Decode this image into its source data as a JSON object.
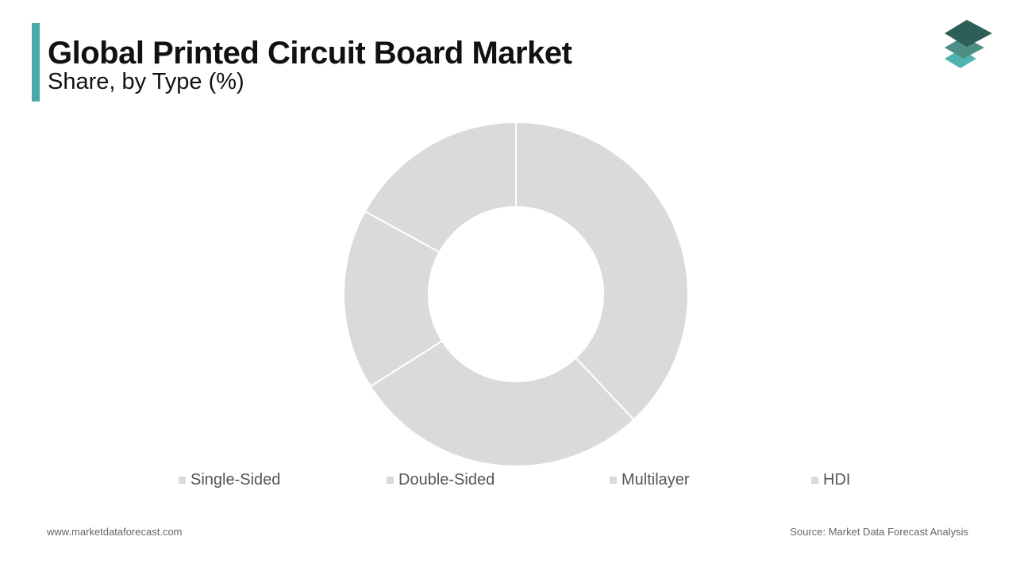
{
  "header": {
    "title": "Global Printed Circuit Board Market",
    "subtitle": "Share, by Type (%)"
  },
  "colors": {
    "accent": "#4aa8a8",
    "slice_fill": "#dadada",
    "slice_stroke": "#ffffff",
    "logo_dark": "#2e5e58",
    "logo_mid": "#4d8f86",
    "logo_light": "#4fb3b0"
  },
  "chart_data": {
    "type": "pie",
    "donut": true,
    "categories": [
      "Single-Sided",
      "Double-Sided",
      "Multilayer",
      "HDI"
    ],
    "values": [
      38,
      28,
      17,
      17
    ],
    "legend_position": "bottom"
  },
  "footer": {
    "website": "www.marketdataforecast.com",
    "source": "Source: Market Data Forecast Analysis"
  }
}
